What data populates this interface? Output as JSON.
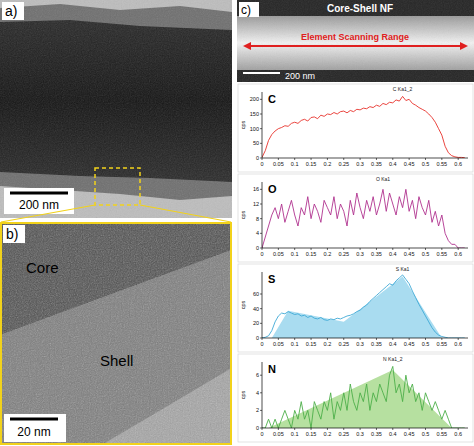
{
  "panels": {
    "a": {
      "label": "a)",
      "scale_bar": "200 nm"
    },
    "b": {
      "label": "b)",
      "scale_bar": "20 nm",
      "core": "Core",
      "shell": "Shell"
    },
    "c": {
      "label": "c)",
      "title": "Core-Shell NF",
      "arrow_label": "Element Scanning Range",
      "scale_bar": "200 nm"
    }
  },
  "chart_data": [
    {
      "type": "line",
      "title": "C",
      "y_label": "cps",
      "xlim": [
        0,
        0.63
      ],
      "ylim": [
        0,
        225
      ],
      "xticks": [
        0,
        0.05,
        0.1,
        0.15,
        0.2,
        0.25,
        0.3,
        0.35,
        0.4,
        0.45,
        0.5,
        0.55,
        0.6
      ],
      "yticks": [
        0,
        50,
        100,
        150,
        200
      ],
      "x": [
        0,
        0.01,
        0.02,
        0.03,
        0.04,
        0.05,
        0.06,
        0.07,
        0.08,
        0.09,
        0.1,
        0.11,
        0.12,
        0.13,
        0.14,
        0.15,
        0.16,
        0.17,
        0.18,
        0.19,
        0.2,
        0.21,
        0.22,
        0.23,
        0.24,
        0.25,
        0.26,
        0.27,
        0.28,
        0.29,
        0.3,
        0.31,
        0.32,
        0.33,
        0.34,
        0.35,
        0.36,
        0.37,
        0.38,
        0.39,
        0.4,
        0.41,
        0.42,
        0.43,
        0.44,
        0.45,
        0.46,
        0.47,
        0.48,
        0.49,
        0.5,
        0.51,
        0.52,
        0.53,
        0.54,
        0.55,
        0.56,
        0.57,
        0.58,
        0.59,
        0.6,
        0.61,
        0.62
      ],
      "series": [
        {
          "name": "C Ka1_2",
          "color": "#e8312a",
          "values": [
            2,
            25,
            60,
            80,
            92,
            100,
            104,
            110,
            108,
            118,
            122,
            118,
            128,
            132,
            126,
            138,
            140,
            134,
            146,
            142,
            150,
            148,
            155,
            150,
            158,
            160,
            154,
            162,
            158,
            166,
            164,
            170,
            168,
            175,
            172,
            180,
            176,
            186,
            182,
            190,
            188,
            198,
            194,
            210,
            196,
            200,
            186,
            180,
            172,
            166,
            160,
            150,
            138,
            122,
            100,
            78,
            40,
            18,
            8,
            4,
            2,
            2,
            1
          ]
        }
      ]
    },
    {
      "type": "line",
      "title": "O",
      "y_label": "cps",
      "xlim": [
        0,
        0.63
      ],
      "ylim": [
        0,
        18
      ],
      "xticks": [
        0,
        0.05,
        0.1,
        0.15,
        0.2,
        0.25,
        0.3,
        0.35,
        0.4,
        0.45,
        0.5,
        0.55,
        0.6
      ],
      "yticks": [
        0,
        4,
        8,
        12,
        16
      ],
      "x": [
        0,
        0.01,
        0.02,
        0.03,
        0.04,
        0.05,
        0.06,
        0.07,
        0.08,
        0.09,
        0.1,
        0.11,
        0.12,
        0.13,
        0.14,
        0.15,
        0.16,
        0.17,
        0.18,
        0.19,
        0.2,
        0.21,
        0.22,
        0.23,
        0.24,
        0.25,
        0.26,
        0.27,
        0.28,
        0.29,
        0.3,
        0.31,
        0.32,
        0.33,
        0.34,
        0.35,
        0.36,
        0.37,
        0.38,
        0.39,
        0.4,
        0.41,
        0.42,
        0.43,
        0.44,
        0.45,
        0.46,
        0.47,
        0.48,
        0.49,
        0.5,
        0.51,
        0.52,
        0.53,
        0.54,
        0.55,
        0.56,
        0.57,
        0.58,
        0.59,
        0.6,
        0.61,
        0.62
      ],
      "series": [
        {
          "name": "O Ka1",
          "color": "#b0328f",
          "values": [
            0,
            3,
            6,
            9,
            11,
            8,
            12,
            7,
            10,
            13,
            9,
            6,
            11,
            9,
            14,
            8,
            12,
            10,
            7,
            13,
            11,
            9,
            14,
            8,
            12,
            10,
            6,
            13,
            9,
            15,
            11,
            8,
            13,
            10,
            14,
            9,
            12,
            16,
            10,
            15,
            12,
            9,
            14,
            11,
            16,
            10,
            13,
            8,
            14,
            11,
            9,
            13,
            7,
            10,
            6,
            9,
            4,
            2,
            1,
            1,
            0,
            0,
            0
          ]
        }
      ]
    },
    {
      "type": "line",
      "title": "S",
      "y_label": "cps",
      "xlim": [
        0,
        0.63
      ],
      "ylim": [
        0,
        90
      ],
      "xticks": [
        0,
        0.05,
        0.1,
        0.15,
        0.2,
        0.25,
        0.3,
        0.35,
        0.4,
        0.45,
        0.5,
        0.55,
        0.6
      ],
      "yticks": [
        0,
        20,
        40,
        60
      ],
      "x": [
        0,
        0.01,
        0.02,
        0.03,
        0.04,
        0.05,
        0.06,
        0.07,
        0.08,
        0.09,
        0.1,
        0.11,
        0.12,
        0.13,
        0.14,
        0.15,
        0.16,
        0.17,
        0.18,
        0.19,
        0.2,
        0.21,
        0.22,
        0.23,
        0.24,
        0.25,
        0.26,
        0.27,
        0.28,
        0.29,
        0.3,
        0.31,
        0.32,
        0.33,
        0.34,
        0.35,
        0.36,
        0.37,
        0.38,
        0.39,
        0.4,
        0.41,
        0.42,
        0.43,
        0.44,
        0.45,
        0.46,
        0.47,
        0.48,
        0.49,
        0.5,
        0.51,
        0.52,
        0.53,
        0.54,
        0.55,
        0.56,
        0.57,
        0.58,
        0.59,
        0.6,
        0.61,
        0.62
      ],
      "series": [
        {
          "type": "area",
          "color": "#a9dcf0",
          "x": [
            0.03,
            0.08,
            0.25,
            0.43,
            0.55
          ],
          "values": [
            0,
            37,
            22,
            84,
            0
          ]
        },
        {
          "name": "S Ka1",
          "color": "#3fa9d6",
          "values": [
            0,
            1,
            3,
            10,
            22,
            30,
            34,
            33,
            36,
            34,
            32,
            33,
            30,
            31,
            28,
            30,
            27,
            26,
            28,
            25,
            24,
            26,
            25,
            27,
            26,
            28,
            30,
            31,
            33,
            36,
            38,
            42,
            45,
            50,
            54,
            58,
            62,
            66,
            70,
            74,
            72,
            78,
            82,
            86,
            80,
            74,
            64,
            55,
            46,
            38,
            30,
            22,
            14,
            8,
            4,
            2,
            1,
            0,
            0,
            0,
            0,
            0,
            0
          ]
        }
      ]
    },
    {
      "type": "line",
      "title": "N",
      "y_label": "cps",
      "xlim": [
        0,
        0.63
      ],
      "ylim": [
        0,
        7.5
      ],
      "xticks": [
        0,
        0.05,
        0.1,
        0.15,
        0.2,
        0.25,
        0.3,
        0.35,
        0.4,
        0.45,
        0.5,
        0.55,
        0.6
      ],
      "yticks": [
        0,
        2,
        4,
        6
      ],
      "x": [
        0,
        0.01,
        0.02,
        0.03,
        0.04,
        0.05,
        0.06,
        0.07,
        0.08,
        0.09,
        0.1,
        0.11,
        0.12,
        0.13,
        0.14,
        0.15,
        0.16,
        0.17,
        0.18,
        0.19,
        0.2,
        0.21,
        0.22,
        0.23,
        0.24,
        0.25,
        0.26,
        0.27,
        0.28,
        0.29,
        0.3,
        0.31,
        0.32,
        0.33,
        0.34,
        0.35,
        0.36,
        0.37,
        0.38,
        0.39,
        0.4,
        0.41,
        0.42,
        0.43,
        0.44,
        0.45,
        0.46,
        0.47,
        0.48,
        0.49,
        0.5,
        0.51,
        0.52,
        0.53,
        0.54,
        0.55,
        0.56,
        0.57,
        0.58,
        0.59,
        0.6,
        0.61,
        0.62
      ],
      "series": [
        {
          "type": "area",
          "color": "#b6e0a0",
          "x": [
            0.02,
            0.4,
            0.58
          ],
          "values": [
            0,
            6.6,
            0
          ]
        },
        {
          "name": "N Ka1_2",
          "color": "#4daf4a",
          "values": [
            0,
            0,
            1,
            0,
            1,
            0,
            1,
            2,
            1,
            0,
            2,
            1,
            3,
            1,
            2,
            0,
            3,
            2,
            1,
            3,
            2,
            4,
            1,
            3,
            2,
            4,
            2,
            5,
            3,
            2,
            4,
            3,
            5,
            2,
            4,
            3,
            5,
            4,
            3,
            6,
            7,
            4,
            5,
            3,
            6,
            4,
            5,
            3,
            4,
            2,
            4,
            3,
            2,
            3,
            2,
            1,
            2,
            1,
            0,
            0,
            0,
            0,
            0
          ]
        }
      ]
    }
  ]
}
